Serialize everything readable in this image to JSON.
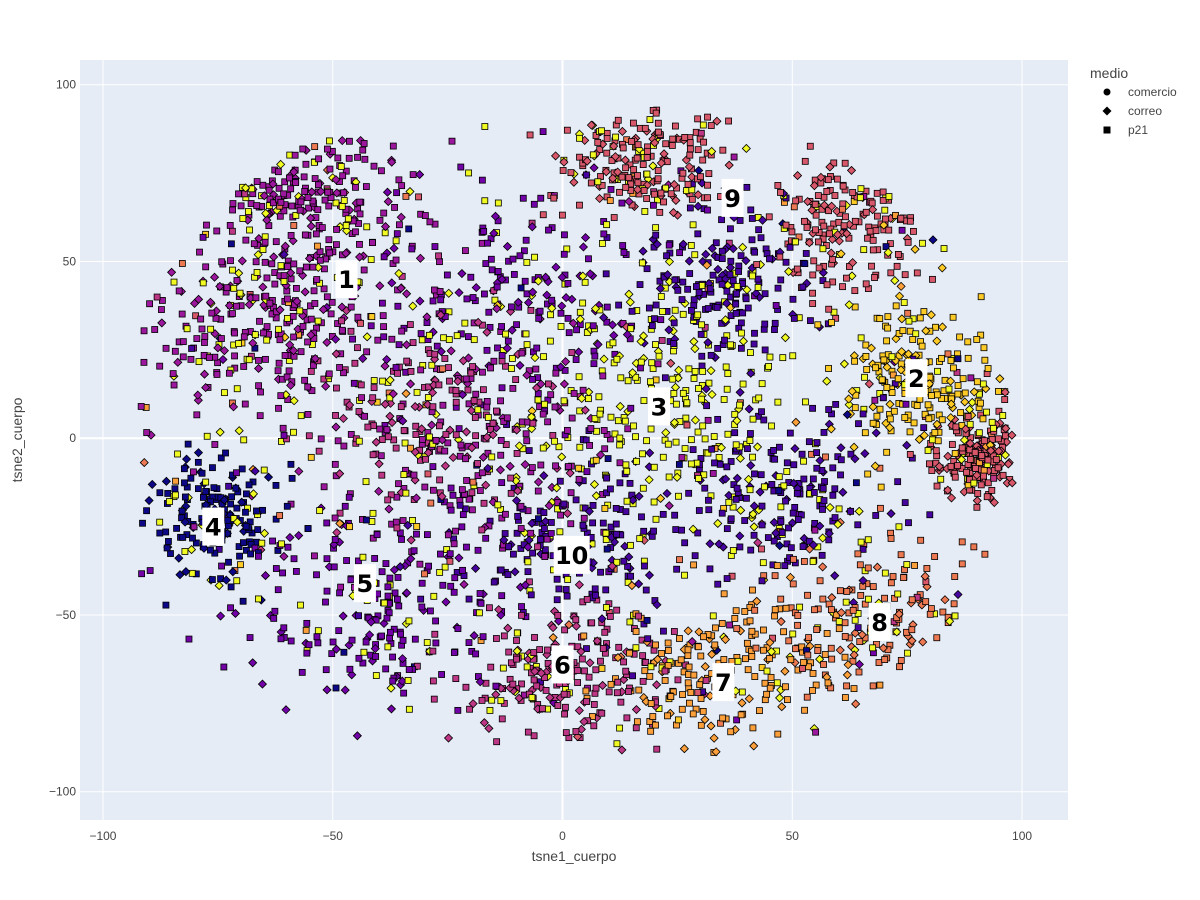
{
  "chart_data": {
    "type": "scatter",
    "xlabel": "tsne1_cuerpo",
    "ylabel": "tsne2_cuerpo",
    "xlim": [
      -105,
      110
    ],
    "ylim": [
      -108,
      107
    ],
    "x_ticks": [
      -100,
      -50,
      0,
      50,
      100
    ],
    "y_ticks": [
      100,
      50,
      0,
      -50,
      -100
    ],
    "x_tick_labels": [
      "−100",
      "−50",
      "0",
      "50",
      "100"
    ],
    "y_tick_labels": [
      "100",
      "50",
      "0",
      "−50",
      "−100"
    ],
    "grid": true,
    "legend": {
      "title": "medio",
      "placement": "top-right",
      "entries": [
        {
          "label": "comercio",
          "symbol": "circle"
        },
        {
          "label": "correo",
          "symbol": "diamond"
        },
        {
          "label": "p21",
          "symbol": "square"
        }
      ]
    },
    "colors": {
      "plot_bg": "#e5ecf6",
      "grid": "#ffffff",
      "marker_outline": "#000000",
      "palette": [
        "#0d0887",
        "#46039f",
        "#7201a8",
        "#9c179e",
        "#bd3786",
        "#d8576b",
        "#ed7953",
        "#fb9f3a",
        "#fdca26",
        "#f0f921"
      ]
    },
    "clusters": [
      {
        "label": "1",
        "x": -47,
        "y": 45
      },
      {
        "label": "2",
        "x": 77,
        "y": 17
      },
      {
        "label": "3",
        "x": 21,
        "y": 9
      },
      {
        "label": "4",
        "x": -76,
        "y": -25
      },
      {
        "label": "5",
        "x": -43,
        "y": -41
      },
      {
        "label": "6",
        "x": 0,
        "y": -64
      },
      {
        "label": "7",
        "x": 35,
        "y": -69
      },
      {
        "label": "8",
        "x": 69,
        "y": -52
      },
      {
        "label": "9",
        "x": 37,
        "y": 68
      },
      {
        "label": "10",
        "x": 2,
        "y": -33
      }
    ]
  }
}
